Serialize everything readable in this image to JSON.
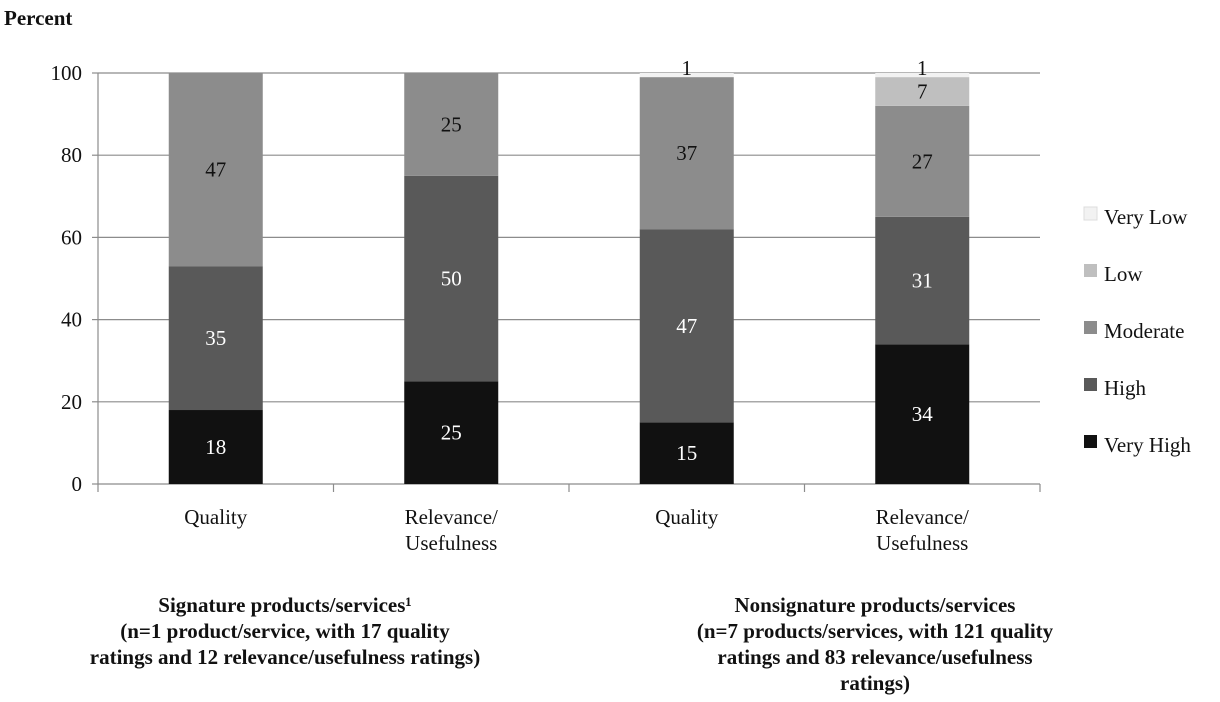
{
  "chart_data": {
    "type": "stacked-bar",
    "ylabel": "Percent",
    "ylim": [
      0,
      100
    ],
    "yticks": [
      0,
      20,
      40,
      60,
      80,
      100
    ],
    "grid": true,
    "legend_position": "right",
    "categories": [
      "Quality",
      "Relevance/ Usefulness",
      "Quality",
      "Relevance/ Usefulness"
    ],
    "series": [
      {
        "name": "Very High",
        "color": "#111111",
        "values": [
          18,
          25,
          15,
          34
        ],
        "labels": [
          "18",
          "25",
          "15",
          "34"
        ],
        "label_color": "#ffffff"
      },
      {
        "name": "High",
        "color": "#595959",
        "values": [
          35,
          50,
          47,
          31
        ],
        "labels": [
          "35",
          "50",
          "47",
          "31"
        ],
        "label_color": "#ffffff"
      },
      {
        "name": "Moderate",
        "color": "#8c8c8c",
        "values": [
          47,
          25,
          37,
          27
        ],
        "labels": [
          "47",
          "25",
          "37",
          "27"
        ],
        "label_color": "#111111"
      },
      {
        "name": "Low",
        "color": "#bfbfbf",
        "values": [
          0,
          0,
          0,
          7
        ],
        "labels": [
          "",
          "",
          "",
          "7"
        ],
        "label_color": "#111111"
      },
      {
        "name": "Very Low",
        "color": "#f2f2f2",
        "values": [
          0,
          0,
          1,
          1
        ],
        "labels": [
          "",
          "",
          "1",
          "1"
        ],
        "label_color": "#111111"
      }
    ],
    "groups": [
      {
        "lines": [
          "Signature products/services¹",
          "(n=1 product/service, with 17 quality",
          "ratings and 12 relevance/usefulness ratings)"
        ]
      },
      {
        "lines": [
          "Nonsignature products/services",
          "(n=7 products/services, with 121 quality",
          "ratings and 83 relevance/usefulness",
          "ratings)"
        ]
      }
    ]
  }
}
